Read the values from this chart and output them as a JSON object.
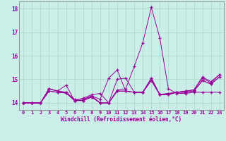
{
  "xlabel": "Windchill (Refroidissement éolien,°C)",
  "background_color": "#cceee8",
  "grid_color": "#aaddcc",
  "line_color": "#990099",
  "xmin": -0.5,
  "xmax": 23.5,
  "ymin": 13.7,
  "ymax": 18.3,
  "yticks": [
    14,
    15,
    16,
    17,
    18
  ],
  "xticks": [
    0,
    1,
    2,
    3,
    4,
    5,
    6,
    7,
    8,
    9,
    10,
    11,
    12,
    13,
    14,
    15,
    16,
    17,
    18,
    19,
    20,
    21,
    22,
    23
  ],
  "series": [
    [
      14.0,
      14.0,
      14.0,
      14.6,
      14.5,
      14.75,
      14.1,
      14.2,
      14.35,
      14.4,
      14.0,
      15.0,
      15.05,
      14.45,
      14.45,
      15.05,
      14.35,
      14.4,
      14.45,
      14.5,
      14.55,
      15.05,
      14.85,
      15.2
    ],
    [
      14.0,
      14.0,
      14.0,
      14.6,
      14.5,
      14.45,
      14.1,
      14.1,
      14.3,
      14.0,
      14.0,
      14.55,
      14.6,
      15.55,
      16.55,
      18.05,
      16.75,
      14.6,
      14.4,
      14.4,
      14.45,
      14.45,
      14.45,
      14.45
    ],
    [
      14.0,
      14.0,
      14.0,
      14.6,
      14.5,
      14.45,
      14.15,
      14.15,
      14.3,
      14.15,
      15.05,
      15.4,
      14.5,
      14.45,
      14.45,
      15.05,
      14.35,
      14.4,
      14.45,
      14.5,
      14.55,
      15.1,
      14.9,
      15.2
    ],
    [
      14.0,
      14.0,
      14.0,
      14.5,
      14.45,
      14.42,
      14.1,
      14.1,
      14.25,
      14.0,
      14.0,
      14.5,
      14.5,
      14.45,
      14.45,
      14.95,
      14.35,
      14.35,
      14.45,
      14.45,
      14.5,
      14.95,
      14.8,
      15.1
    ],
    [
      14.0,
      14.0,
      14.0,
      14.5,
      14.45,
      14.42,
      14.1,
      14.1,
      14.25,
      14.0,
      14.0,
      14.5,
      14.5,
      14.45,
      14.45,
      14.95,
      14.35,
      14.35,
      14.45,
      14.45,
      14.5,
      14.95,
      14.8,
      15.1
    ]
  ]
}
